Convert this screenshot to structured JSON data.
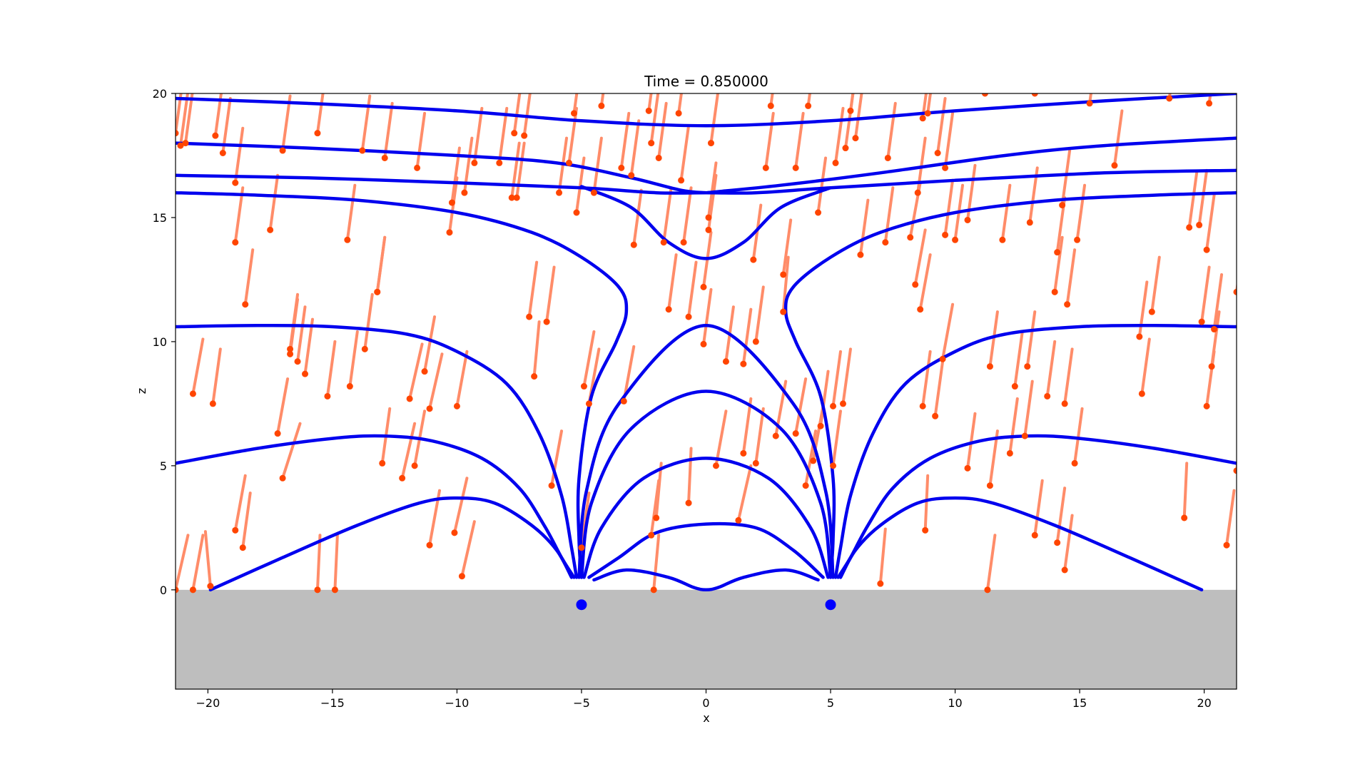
{
  "chart_data": {
    "type": "line",
    "title": "Time = 0.850000",
    "xlabel": "x",
    "ylabel": "z",
    "xlim": [
      -21.3,
      21.3
    ],
    "ylim": [
      -4,
      20
    ],
    "grid": false,
    "legend": "none",
    "x_ticks": [
      -20,
      -15,
      -10,
      -5,
      0,
      5,
      10,
      15,
      20
    ],
    "y_ticks": [
      0,
      5,
      10,
      15,
      20
    ],
    "x_tick_labels": [
      "−20",
      "−15",
      "−10",
      "−5",
      "0",
      "5",
      "10",
      "15",
      "20"
    ],
    "y_tick_labels": [
      "0",
      "5",
      "10",
      "15",
      "20"
    ],
    "colors": {
      "field_line": "#0000ee",
      "source": "#0000ff",
      "trail": "#ff8c69",
      "particle": "#ff4500",
      "ground": "#bebebe"
    },
    "ground_region": {
      "x": [
        -21.3,
        21.3
      ],
      "z": [
        -4,
        0
      ]
    },
    "sources": [
      {
        "x": -5.0,
        "z": -0.6
      },
      {
        "x": 5.0,
        "z": -0.6
      }
    ],
    "field_lines": [
      [
        [
          -19.9,
          0.0
        ],
        [
          -17,
          1.3
        ],
        [
          -14,
          2.6
        ],
        [
          -11.5,
          3.5
        ],
        [
          -10,
          3.7
        ],
        [
          -8.5,
          3.5
        ],
        [
          -7,
          2.6
        ],
        [
          -6,
          1.6
        ],
        [
          -5.4,
          0.5
        ]
      ],
      [
        [
          -21.3,
          5.1
        ],
        [
          -18,
          5.7
        ],
        [
          -15,
          6.1
        ],
        [
          -13,
          6.2
        ],
        [
          -11,
          6.0
        ],
        [
          -9,
          5.3
        ],
        [
          -7.5,
          4.1
        ],
        [
          -6.5,
          2.6
        ],
        [
          -5.8,
          1.3
        ],
        [
          -5.3,
          0.5
        ]
      ],
      [
        [
          -21.3,
          10.6
        ],
        [
          -18,
          10.65
        ],
        [
          -15,
          10.6
        ],
        [
          -12,
          10.3
        ],
        [
          -10,
          9.6
        ],
        [
          -8,
          8.3
        ],
        [
          -6.7,
          6.3
        ],
        [
          -5.8,
          3.8
        ],
        [
          -5.4,
          1.7
        ],
        [
          -5.2,
          0.5
        ]
      ],
      [
        [
          -21.3,
          16.0
        ],
        [
          -18,
          15.9
        ],
        [
          -14,
          15.7
        ],
        [
          -10,
          15.2
        ],
        [
          -7,
          14.4
        ],
        [
          -5,
          13.4
        ],
        [
          -3.5,
          12.2
        ],
        [
          -3.2,
          11.2
        ],
        [
          -3.6,
          10.0
        ],
        [
          -4.6,
          7.8
        ],
        [
          -5.1,
          4.5
        ],
        [
          -5.1,
          2.0
        ],
        [
          -5.0,
          0.5
        ]
      ],
      [
        [
          -21.3,
          16.7
        ],
        [
          -16,
          16.6
        ],
        [
          -10,
          16.4
        ],
        [
          -5,
          16.2
        ],
        [
          -2,
          16.0
        ],
        [
          0,
          16.0
        ],
        [
          2,
          16.0
        ],
        [
          5,
          16.2
        ],
        [
          10,
          16.5
        ],
        [
          16,
          16.8
        ],
        [
          21.3,
          16.9
        ]
      ],
      [
        [
          -21.3,
          18.0
        ],
        [
          -16,
          17.8
        ],
        [
          -10,
          17.5
        ],
        [
          -6,
          17.2
        ],
        [
          -3,
          16.6
        ],
        [
          -1,
          16.1
        ],
        [
          0,
          16.0
        ]
      ],
      [
        [
          -21.3,
          19.8
        ],
        [
          -16,
          19.6
        ],
        [
          -10,
          19.3
        ],
        [
          -5,
          18.9
        ],
        [
          0,
          18.7
        ],
        [
          5,
          18.9
        ],
        [
          10,
          19.3
        ],
        [
          16,
          19.7
        ],
        [
          21.3,
          20.0
        ]
      ],
      [
        [
          -5,
          16.25
        ],
        [
          -3,
          15.4
        ],
        [
          -1.5,
          14.0
        ],
        [
          0,
          13.35
        ],
        [
          1.5,
          14.0
        ],
        [
          3,
          15.4
        ],
        [
          5,
          16.2
        ]
      ],
      [
        [
          0,
          16.0
        ],
        [
          3,
          16.3
        ],
        [
          7,
          16.8
        ],
        [
          12,
          17.5
        ],
        [
          16,
          17.9
        ],
        [
          21.3,
          18.2
        ]
      ],
      [
        [
          -4.7,
          0.5
        ],
        [
          -3.5,
          1.3
        ],
        [
          -2,
          2.3
        ],
        [
          0,
          2.65
        ],
        [
          2,
          2.5
        ],
        [
          3.5,
          1.6
        ],
        [
          4.7,
          0.5
        ]
      ],
      [
        [
          -4.5,
          0.4
        ],
        [
          -3.2,
          0.8
        ],
        [
          -1.5,
          0.5
        ],
        [
          -0.5,
          0.1
        ],
        [
          0,
          0.0
        ],
        [
          0.5,
          0.1
        ],
        [
          1.5,
          0.5
        ],
        [
          3.2,
          0.8
        ],
        [
          4.5,
          0.4
        ]
      ],
      [
        [
          -4.9,
          0.5
        ],
        [
          -4.2,
          2.5
        ],
        [
          -2.5,
          4.5
        ],
        [
          0,
          5.3
        ],
        [
          2.5,
          4.5
        ],
        [
          4.2,
          2.5
        ],
        [
          4.9,
          0.5
        ]
      ],
      [
        [
          -5.0,
          0.5
        ],
        [
          -4.6,
          3.5
        ],
        [
          -3,
          6.5
        ],
        [
          0,
          8.0
        ],
        [
          3,
          6.5
        ],
        [
          4.6,
          3.5
        ],
        [
          5.0,
          0.5
        ]
      ],
      [
        [
          -5.1,
          0.5
        ],
        [
          -4.8,
          4.0
        ],
        [
          -3.5,
          7.5
        ],
        [
          0,
          10.65
        ],
        [
          3.5,
          7.5
        ],
        [
          4.8,
          4.0
        ],
        [
          5.1,
          0.5
        ]
      ],
      [
        [
          5.0,
          0.5
        ],
        [
          5.1,
          2.0
        ],
        [
          5.1,
          4.5
        ],
        [
          4.6,
          7.8
        ],
        [
          3.6,
          10.0
        ],
        [
          3.2,
          11.2
        ],
        [
          3.5,
          12.2
        ],
        [
          5,
          13.4
        ],
        [
          7,
          14.4
        ],
        [
          10,
          15.2
        ],
        [
          14,
          15.7
        ],
        [
          18,
          15.9
        ],
        [
          21.3,
          16.0
        ]
      ],
      [
        [
          5.2,
          0.5
        ],
        [
          5.4,
          1.7
        ],
        [
          5.8,
          3.8
        ],
        [
          6.7,
          6.3
        ],
        [
          8,
          8.3
        ],
        [
          10,
          9.6
        ],
        [
          12,
          10.3
        ],
        [
          15,
          10.6
        ],
        [
          18,
          10.65
        ],
        [
          21.3,
          10.6
        ]
      ],
      [
        [
          5.3,
          0.5
        ],
        [
          5.8,
          1.3
        ],
        [
          6.5,
          2.6
        ],
        [
          7.5,
          4.1
        ],
        [
          9,
          5.3
        ],
        [
          11,
          6.0
        ],
        [
          13,
          6.2
        ],
        [
          15,
          6.1
        ],
        [
          18,
          5.7
        ],
        [
          21.3,
          5.1
        ]
      ],
      [
        [
          5.4,
          0.5
        ],
        [
          6,
          1.6
        ],
        [
          7,
          2.6
        ],
        [
          8.5,
          3.5
        ],
        [
          10,
          3.7
        ],
        [
          11.5,
          3.5
        ],
        [
          14,
          2.6
        ],
        [
          17,
          1.3
        ],
        [
          19.9,
          0.0
        ]
      ]
    ],
    "particles": [
      [
        -21.3,
        0.0,
        0.5
      ],
      [
        -20.6,
        0.0,
        0.4
      ],
      [
        -19.9,
        0.15,
        -0.2
      ],
      [
        -15.6,
        0.0,
        0.1
      ],
      [
        -14.9,
        0.0,
        0.1
      ],
      [
        -2.1,
        0.0,
        0.2
      ],
      [
        11.3,
        0.0,
        0.3
      ],
      [
        7.0,
        0.25,
        0.2
      ],
      [
        -18.6,
        1.7,
        0.3
      ],
      [
        -18.9,
        2.4,
        0.4
      ],
      [
        -11.1,
        1.8,
        0.4
      ],
      [
        -10.1,
        2.3,
        0.5
      ],
      [
        -9.8,
        0.55,
        0.5
      ],
      [
        -5.0,
        1.7,
        0.3
      ],
      [
        -2.2,
        2.2,
        0.3
      ],
      [
        -2.0,
        2.9,
        0.2
      ],
      [
        -0.7,
        3.5,
        0.1
      ],
      [
        1.3,
        2.8,
        0.5
      ],
      [
        8.8,
        2.4,
        0.1
      ],
      [
        13.2,
        2.2,
        0.3
      ],
      [
        14.1,
        1.9,
        0.3
      ],
      [
        14.4,
        0.8,
        0.3
      ],
      [
        19.2,
        2.9,
        0.1
      ],
      [
        20.9,
        1.8,
        0.3
      ],
      [
        -17.0,
        4.5,
        0.7
      ],
      [
        -13.0,
        5.1,
        0.3
      ],
      [
        -12.2,
        4.5,
        0.5
      ],
      [
        -11.7,
        5.0,
        0.4
      ],
      [
        -11.9,
        7.7,
        0.5
      ],
      [
        -11.1,
        7.3,
        0.5
      ],
      [
        -6.2,
        4.2,
        0.4
      ],
      [
        -4.7,
        7.5,
        0.4
      ],
      [
        -3.3,
        7.6,
        0.4
      ],
      [
        0.4,
        5.0,
        0.4
      ],
      [
        1.5,
        5.5,
        0.3
      ],
      [
        2.0,
        5.1,
        0.3
      ],
      [
        2.8,
        6.2,
        0.4
      ],
      [
        3.6,
        6.3,
        0.4
      ],
      [
        4.0,
        4.2,
        0.4
      ],
      [
        4.3,
        5.2,
        0.4
      ],
      [
        4.6,
        6.6,
        0.3
      ],
      [
        5.1,
        5.0,
        0.3
      ],
      [
        5.1,
        7.4,
        0.3
      ],
      [
        5.5,
        7.5,
        0.3
      ],
      [
        8.7,
        7.4,
        0.3
      ],
      [
        9.2,
        7.0,
        0.3
      ],
      [
        10.5,
        4.9,
        0.3
      ],
      [
        11.4,
        4.2,
        0.3
      ],
      [
        12.2,
        5.5,
        0.3
      ],
      [
        12.8,
        6.2,
        0.3
      ],
      [
        13.7,
        7.8,
        0.3
      ],
      [
        14.4,
        7.5,
        0.3
      ],
      [
        14.8,
        5.1,
        0.3
      ],
      [
        17.5,
        7.9,
        0.3
      ],
      [
        20.1,
        7.4,
        0.3
      ],
      [
        21.3,
        4.8,
        0.3
      ],
      [
        -20.6,
        7.9,
        0.4
      ],
      [
        -19.8,
        7.5,
        0.3
      ],
      [
        -17.2,
        6.3,
        0.4
      ],
      [
        -15.2,
        7.8,
        0.3
      ],
      [
        -14.3,
        8.2,
        0.3
      ],
      [
        -11.3,
        8.8,
        0.4
      ],
      [
        -10.0,
        7.4,
        0.4
      ],
      [
        -4.9,
        8.2,
        0.4
      ],
      [
        -13.7,
        9.7,
        0.3
      ],
      [
        -16.7,
        9.7,
        0.3
      ],
      [
        -16.7,
        9.5,
        0.3
      ],
      [
        -16.4,
        9.2,
        0.3
      ],
      [
        -16.1,
        8.7,
        0.3
      ],
      [
        -6.9,
        8.6,
        0.2
      ],
      [
        0.8,
        9.2,
        0.3
      ],
      [
        1.5,
        9.1,
        0.3
      ],
      [
        2.0,
        10.0,
        0.3
      ],
      [
        3.1,
        11.2,
        0.2
      ],
      [
        -1.5,
        11.3,
        0.3
      ],
      [
        -0.7,
        11.0,
        0.3
      ],
      [
        -0.1,
        9.9,
        0.3
      ],
      [
        -7.1,
        11.0,
        0.3
      ],
      [
        -6.4,
        10.8,
        0.3
      ],
      [
        -13.2,
        12.0,
        0.3
      ],
      [
        -18.5,
        11.5,
        0.3
      ],
      [
        8.4,
        12.3,
        0.4
      ],
      [
        8.6,
        11.3,
        0.4
      ],
      [
        9.5,
        9.3,
        0.4
      ],
      [
        11.4,
        9.0,
        0.3
      ],
      [
        12.4,
        8.2,
        0.3
      ],
      [
        12.9,
        9.0,
        0.3
      ],
      [
        14.0,
        12.0,
        0.3
      ],
      [
        14.5,
        11.5,
        0.3
      ],
      [
        17.4,
        10.2,
        0.3
      ],
      [
        17.9,
        11.2,
        0.3
      ],
      [
        19.9,
        10.8,
        0.3
      ],
      [
        20.3,
        9.0,
        0.3
      ],
      [
        20.4,
        10.5,
        0.3
      ],
      [
        21.3,
        12.0,
        0.3
      ],
      [
        -0.9,
        14.0,
        0.3
      ],
      [
        -1.7,
        14.0,
        0.3
      ],
      [
        -0.1,
        12.2,
        0.3
      ],
      [
        -2.9,
        13.9,
        0.3
      ],
      [
        1.9,
        13.3,
        0.3
      ],
      [
        3.1,
        12.7,
        0.3
      ],
      [
        6.2,
        13.5,
        0.3
      ],
      [
        7.2,
        14.0,
        0.3
      ],
      [
        8.2,
        14.2,
        0.4
      ],
      [
        9.6,
        14.3,
        0.3
      ],
      [
        10.0,
        14.1,
        0.3
      ],
      [
        10.5,
        14.9,
        0.3
      ],
      [
        11.9,
        14.1,
        0.3
      ],
      [
        13.0,
        14.8,
        0.3
      ],
      [
        14.1,
        13.6,
        0.3
      ],
      [
        14.3,
        15.5,
        0.3
      ],
      [
        14.9,
        14.1,
        0.3
      ],
      [
        19.4,
        14.6,
        0.3
      ],
      [
        19.8,
        14.7,
        0.3
      ],
      [
        20.1,
        13.7,
        0.3
      ],
      [
        -17.5,
        14.5,
        0.3
      ],
      [
        -18.9,
        14.0,
        0.3
      ],
      [
        -14.4,
        14.1,
        0.3
      ],
      [
        -13.2,
        12.0,
        0.3
      ],
      [
        -10.3,
        14.4,
        0.3
      ],
      [
        -9.7,
        16.0,
        0.3
      ],
      [
        -10.2,
        15.6,
        0.3
      ],
      [
        -8.3,
        17.2,
        0.3
      ],
      [
        -7.8,
        15.8,
        0.3
      ],
      [
        -7.6,
        15.8,
        0.3
      ],
      [
        -5.9,
        16.0,
        0.3
      ],
      [
        -5.5,
        17.2,
        0.3
      ],
      [
        -5.2,
        15.2,
        0.3
      ],
      [
        -4.5,
        16.0,
        0.3
      ],
      [
        -3.4,
        17.0,
        0.3
      ],
      [
        -3.0,
        16.7,
        0.3
      ],
      [
        -1.0,
        16.5,
        0.3
      ],
      [
        0.1,
        15.0,
        0.3
      ],
      [
        0.1,
        14.5,
        0.3
      ],
      [
        0.2,
        18.0,
        0.3
      ],
      [
        2.4,
        17.0,
        0.3
      ],
      [
        3.6,
        17.0,
        0.3
      ],
      [
        4.5,
        15.2,
        0.3
      ],
      [
        5.2,
        17.2,
        0.3
      ],
      [
        5.6,
        17.8,
        0.3
      ],
      [
        7.3,
        17.4,
        0.3
      ],
      [
        8.5,
        16.0,
        0.3
      ],
      [
        9.3,
        17.6,
        0.3
      ],
      [
        9.6,
        17.0,
        0.3
      ],
      [
        -21.3,
        18.4,
        0.3
      ],
      [
        -21.1,
        17.9,
        0.3
      ],
      [
        -19.4,
        17.6,
        0.3
      ],
      [
        -18.9,
        16.4,
        0.3
      ],
      [
        -17.0,
        17.7,
        0.3
      ],
      [
        -15.6,
        18.4,
        0.3
      ],
      [
        -13.8,
        17.7,
        0.3
      ],
      [
        -12.9,
        17.4,
        0.3
      ],
      [
        -11.6,
        17.0,
        0.3
      ],
      [
        -9.3,
        17.2,
        0.3
      ],
      [
        -7.7,
        18.4,
        0.3
      ],
      [
        -7.3,
        18.3,
        0.3
      ],
      [
        -5.3,
        19.2,
        0.3
      ],
      [
        -4.2,
        19.5,
        0.3
      ],
      [
        -2.3,
        19.3,
        0.3
      ],
      [
        -2.2,
        18.0,
        0.3
      ],
      [
        -1.1,
        19.2,
        0.3
      ],
      [
        2.6,
        19.5,
        0.3
      ],
      [
        4.1,
        19.5,
        0.3
      ],
      [
        5.8,
        19.3,
        0.3
      ],
      [
        6.0,
        18.2,
        0.3
      ],
      [
        8.7,
        19.0,
        0.3
      ],
      [
        8.9,
        19.2,
        0.3
      ],
      [
        11.2,
        20.0,
        0.3
      ],
      [
        13.2,
        20.0,
        0.3
      ],
      [
        15.4,
        19.6,
        0.3
      ],
      [
        16.4,
        17.1,
        0.3
      ],
      [
        18.6,
        19.8,
        0.3
      ],
      [
        20.2,
        19.6,
        0.3
      ],
      [
        -20.9,
        18.0,
        0.3
      ],
      [
        -19.7,
        18.3,
        0.3
      ],
      [
        -1.9,
        17.4,
        0.3
      ]
    ]
  }
}
